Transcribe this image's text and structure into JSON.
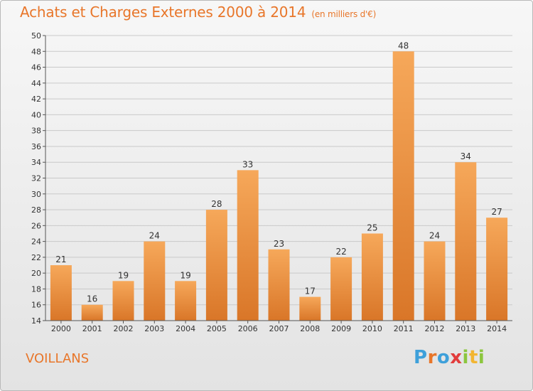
{
  "header": {
    "title": "Achats et Charges Externes 2000 à 2014",
    "unit": "(en milliers d'€)"
  },
  "commune": "VOILLANS",
  "logo": {
    "text": "Proxiti"
  },
  "colors": {
    "accent": "#e8762a",
    "bar_light": "#f6a75a",
    "bar_dark": "#d9782a"
  },
  "chart_data": {
    "type": "bar",
    "categories": [
      "2000",
      "2001",
      "2002",
      "2003",
      "2004",
      "2005",
      "2006",
      "2007",
      "2008",
      "2009",
      "2010",
      "2011",
      "2012",
      "2013",
      "2014"
    ],
    "values": [
      21,
      16,
      19,
      24,
      19,
      28,
      33,
      23,
      17,
      22,
      25,
      48,
      24,
      34,
      27
    ],
    "ylim": [
      14,
      50
    ],
    "yticks": [
      14,
      16,
      18,
      20,
      22,
      24,
      26,
      28,
      30,
      32,
      34,
      36,
      38,
      40,
      42,
      44,
      46,
      48,
      50
    ],
    "grid": true,
    "xlabel": "",
    "ylabel": ""
  }
}
